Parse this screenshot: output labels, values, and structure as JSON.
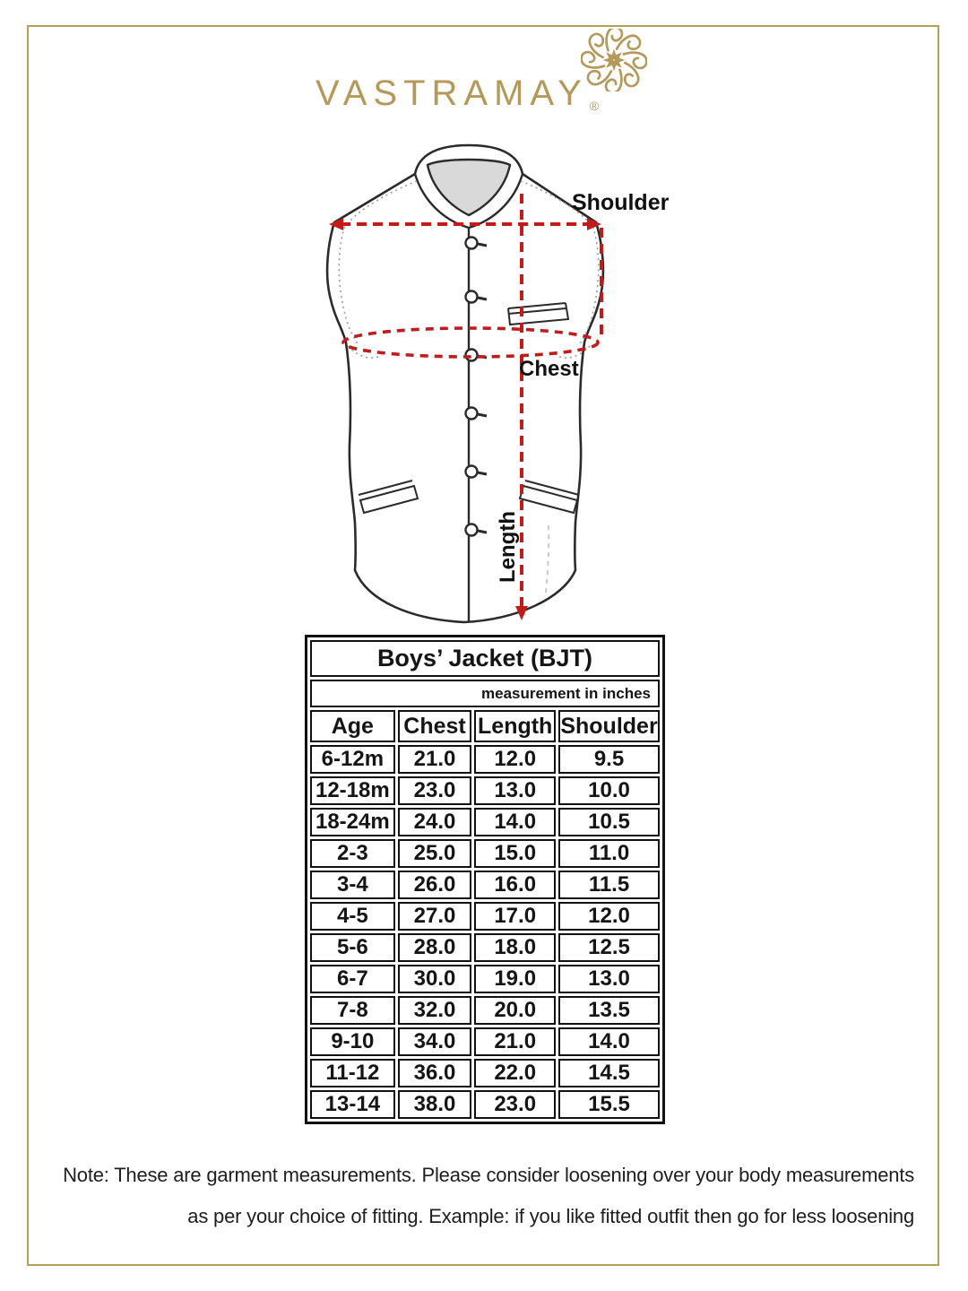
{
  "brand": {
    "name": "VASTRAMAY",
    "registered_mark": "®",
    "gold_color": "#b5995a"
  },
  "diagram": {
    "labels": {
      "shoulder": "Shoulder",
      "chest": "Chest",
      "length": "Length"
    },
    "measure_line_color": "#c21b1b"
  },
  "size_chart": {
    "title": "Boys’ Jacket (BJT)",
    "unit_note": "measurement in inches",
    "columns": [
      "Age",
      "Chest",
      "Length",
      "Shoulder"
    ],
    "rows": [
      [
        "6-12m",
        "21.0",
        "12.0",
        "9.5"
      ],
      [
        "12-18m",
        "23.0",
        "13.0",
        "10.0"
      ],
      [
        "18-24m",
        "24.0",
        "14.0",
        "10.5"
      ],
      [
        "2-3",
        "25.0",
        "15.0",
        "11.0"
      ],
      [
        "3-4",
        "26.0",
        "16.0",
        "11.5"
      ],
      [
        "4-5",
        "27.0",
        "17.0",
        "12.0"
      ],
      [
        "5-6",
        "28.0",
        "18.0",
        "12.5"
      ],
      [
        "6-7",
        "30.0",
        "19.0",
        "13.0"
      ],
      [
        "7-8",
        "32.0",
        "20.0",
        "13.5"
      ],
      [
        "9-10",
        "34.0",
        "21.0",
        "14.0"
      ],
      [
        "11-12",
        "36.0",
        "22.0",
        "14.5"
      ],
      [
        "13-14",
        "38.0",
        "23.0",
        "15.5"
      ]
    ]
  },
  "note": {
    "line1": "Note: These are garment measurements. Please consider loosening over your body measurements",
    "line2": "as per your choice of fitting. Example: if you like fitted outfit then go for less loosening"
  }
}
